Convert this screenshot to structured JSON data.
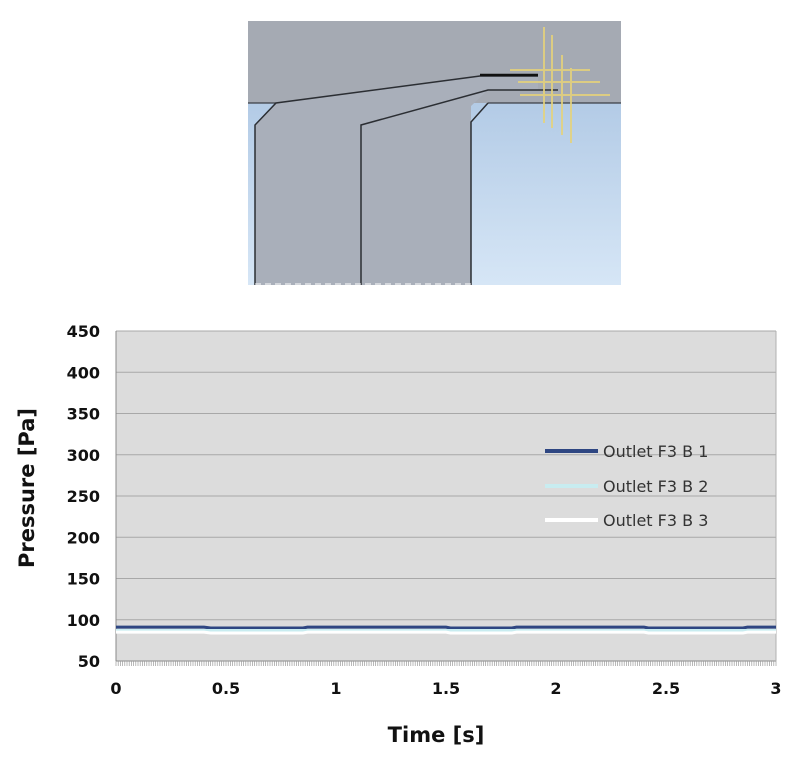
{
  "geometry_figure": {
    "fluid_color": "#a9afba",
    "air_top_color": "#a5aab3",
    "air_bottom_color": "#bcd5ef",
    "line_color": "#2b2e33",
    "probe_color": "#e6d37a"
  },
  "chart_data": {
    "type": "line",
    "xlabel": "Time [s]",
    "ylabel": "Pressure [Pa]",
    "xlim": [
      0,
      3
    ],
    "ylim": [
      50,
      450
    ],
    "x_ticks": [
      "0",
      "0.5",
      "1",
      "1.5",
      "2",
      "2.5",
      "3"
    ],
    "y_ticks": [
      "50",
      "100",
      "150",
      "200",
      "250",
      "300",
      "350",
      "400",
      "450"
    ],
    "grid": true,
    "legend_position": "right",
    "plot_background": "#dcdcdc",
    "series": [
      {
        "name": "Outlet F3 B 1",
        "color": "#2e4682",
        "x": [
          0,
          0.4,
          0.43,
          0.85,
          0.87,
          1.5,
          1.52,
          1.8,
          1.82,
          2.4,
          2.42,
          2.85,
          2.87,
          3
        ],
        "y": [
          91,
          91,
          90,
          90,
          91,
          91,
          90,
          90,
          91,
          91,
          90,
          90,
          91,
          91
        ]
      },
      {
        "name": "Outlet F3 B 2",
        "color": "#c8ecf0",
        "x": [
          0,
          3
        ],
        "y": [
          87,
          87
        ]
      },
      {
        "name": "Outlet F3 B 3",
        "color": "#ffffff",
        "x": [
          0,
          0.4,
          0.43,
          0.85,
          0.87,
          1.5,
          1.52,
          1.8,
          1.82,
          2.4,
          2.42,
          2.85,
          2.87,
          3
        ],
        "y": [
          85,
          85,
          84,
          84,
          85,
          85,
          84,
          84,
          85,
          85,
          84,
          84,
          85,
          85
        ]
      }
    ]
  }
}
